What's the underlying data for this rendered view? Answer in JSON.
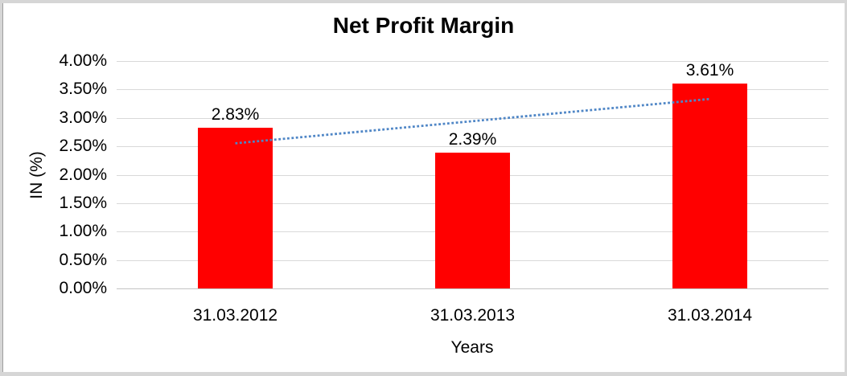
{
  "chart_data": {
    "type": "bar",
    "title": "Net Profit Margin",
    "xlabel": "Years",
    "ylabel": "IN (%)",
    "categories": [
      "31.03.2012",
      "31.03.2013",
      "31.03.2014"
    ],
    "series": [
      {
        "name": "Net Profit Margin",
        "values": [
          2.83,
          2.39,
          3.61
        ]
      }
    ],
    "data_labels": [
      "2.83%",
      "2.39%",
      "3.61%"
    ],
    "ylim": [
      0,
      4
    ],
    "ytick_step": 0.5,
    "yticks": [
      {
        "value": 4.0,
        "label": "4.00%"
      },
      {
        "value": 3.5,
        "label": "3.50%"
      },
      {
        "value": 3.0,
        "label": "3.00%"
      },
      {
        "value": 2.5,
        "label": "2.50%"
      },
      {
        "value": 2.0,
        "label": "2.00%"
      },
      {
        "value": 1.5,
        "label": "1.50%"
      },
      {
        "value": 1.0,
        "label": "1.00%"
      },
      {
        "value": 0.5,
        "label": "0.50%"
      },
      {
        "value": 0.0,
        "label": "0.00%"
      }
    ],
    "grid": true,
    "legend": "none",
    "trendline": {
      "type": "linear",
      "style": "dotted",
      "start_value": 2.553,
      "end_value": 3.333
    },
    "colors": {
      "bar": "#ff0000",
      "gridline": "#d9d9d9",
      "axis_line": "#c3c3c3",
      "trendline": "#4f86c6",
      "text": "#000000",
      "background": "#ffffff",
      "frame": "#d6d6d6"
    }
  }
}
